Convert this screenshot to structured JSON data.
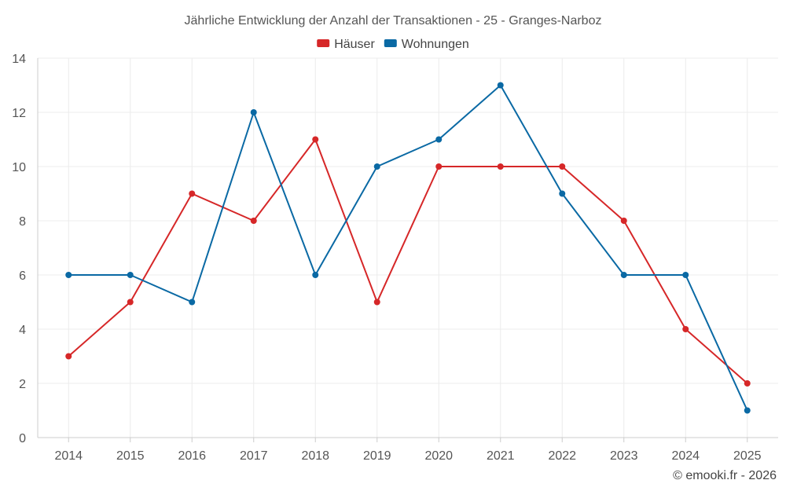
{
  "chart_data": {
    "type": "line",
    "title": "Jährliche Entwicklung der Anzahl der Transaktionen - 25 - Granges-Narboz",
    "categories": [
      "2014",
      "2015",
      "2016",
      "2017",
      "2018",
      "2019",
      "2020",
      "2021",
      "2022",
      "2023",
      "2024",
      "2025"
    ],
    "series": [
      {
        "name": "Häuser",
        "color": "#d62728",
        "values": [
          3,
          5,
          9,
          8,
          11,
          5,
          10,
          10,
          10,
          8,
          4,
          2
        ]
      },
      {
        "name": "Wohnungen",
        "color": "#0a69a4",
        "values": [
          6,
          6,
          5,
          12,
          6,
          10,
          11,
          13,
          9,
          6,
          6,
          1
        ]
      }
    ],
    "ylim": [
      0,
      14
    ],
    "yticks": [
      0,
      2,
      4,
      6,
      8,
      10,
      12,
      14
    ],
    "grid": true,
    "legend": "top-center",
    "xlabel": "",
    "ylabel": ""
  },
  "credit": "© emooki.fr - 2026"
}
